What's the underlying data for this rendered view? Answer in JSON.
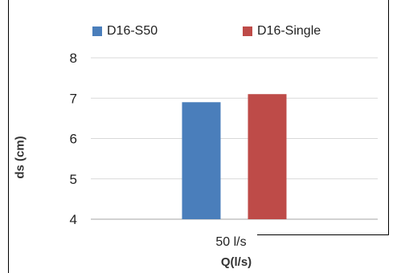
{
  "chart_data": {
    "type": "bar",
    "categories": [
      "50 l/s"
    ],
    "series": [
      {
        "name": "D16-S50",
        "values": [
          6.9
        ],
        "color": "#4a7ebb"
      },
      {
        "name": "D16-Single",
        "values": [
          7.1
        ],
        "color": "#be4b48"
      }
    ],
    "xlabel": "Q(l/s)",
    "ylabel": "ds (cm)",
    "ylim": [
      4,
      8
    ],
    "yticks": [
      "4",
      "5",
      "6",
      "7",
      "8"
    ],
    "grid": true,
    "legend": "top"
  }
}
